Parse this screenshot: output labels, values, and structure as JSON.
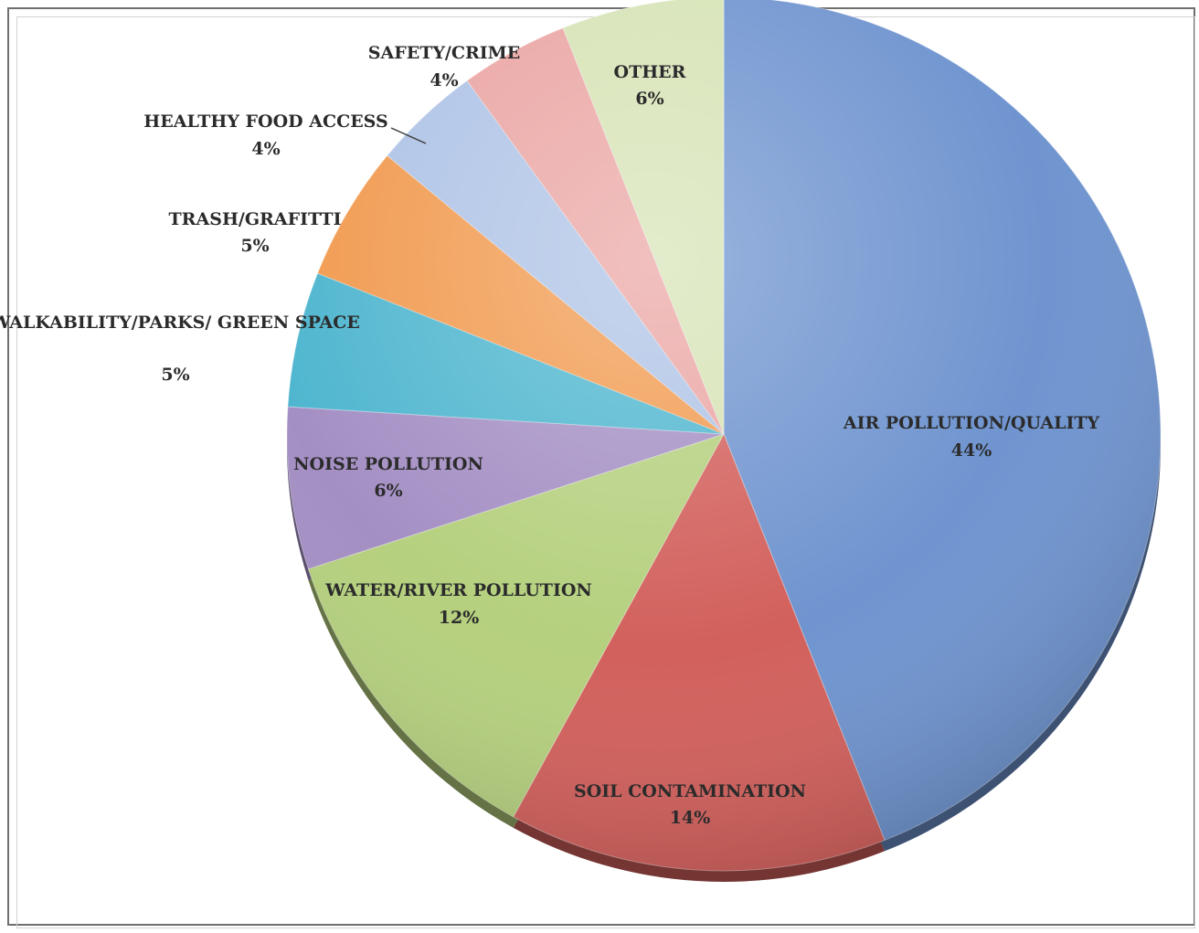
{
  "chart_data": {
    "type": "pie",
    "title": "",
    "slices": [
      {
        "label": "AIR POLLUTION/QUALITY",
        "pct_label": "44%",
        "value": 44,
        "color": "#6f94cf"
      },
      {
        "label": "SOIL CONTAMINATION",
        "pct_label": "14%",
        "value": 14,
        "color": "#d2605c"
      },
      {
        "label": "WATER/RIVER POLLUTION",
        "pct_label": "12%",
        "value": 12,
        "color": "#b5d07e"
      },
      {
        "label": "NOISE POLLUTION",
        "pct_label": "6%",
        "value": 6,
        "color": "#a48fc4"
      },
      {
        "label": "WALKABILITY/PARKS/ GREEN SPACE",
        "pct_label": "5%",
        "value": 5,
        "color": "#4fb6cf"
      },
      {
        "label": "TRASH/GRAFITTI",
        "pct_label": "5%",
        "value": 5,
        "color": "#f19a4f"
      },
      {
        "label": "HEALTHY FOOD ACCESS",
        "pct_label": "4%",
        "value": 4,
        "color": "#aec3e6"
      },
      {
        "label": "SAFETY/CRIME",
        "pct_label": "4%",
        "value": 4,
        "color": "#eaa5a3"
      },
      {
        "label": "OTHER",
        "pct_label": "6%",
        "value": 6,
        "color": "#d6e3b5"
      }
    ]
  }
}
